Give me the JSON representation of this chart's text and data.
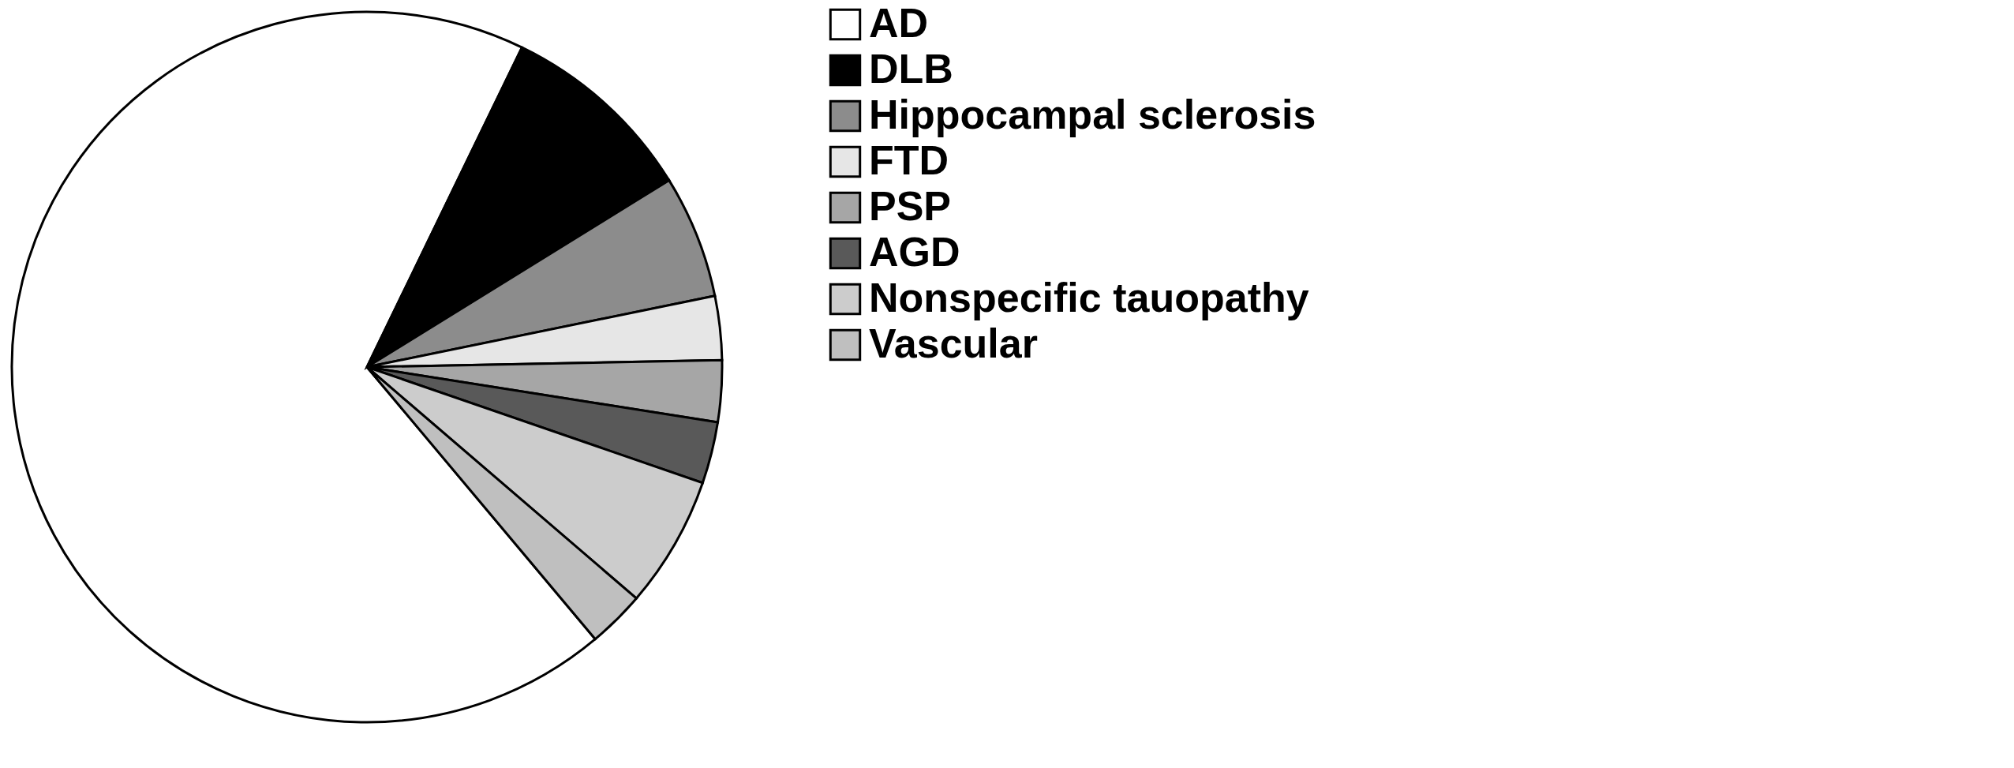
{
  "chart_data": {
    "type": "pie",
    "categories": [
      "AD",
      "DLB",
      "Hippocampal sclerosis",
      "FTD",
      "PSP",
      "AGD",
      "Nonspecific tauopathy",
      "Vascular"
    ],
    "values": [
      68.3,
      9.0,
      5.6,
      2.9,
      2.8,
      2.8,
      6.0,
      2.6
    ],
    "colors": [
      "#ffffff",
      "#000000",
      "#8c8c8c",
      "#e6e6e6",
      "#a6a6a6",
      "#595959",
      "#cccccc",
      "#bfbfbf"
    ],
    "legend": "top right"
  }
}
